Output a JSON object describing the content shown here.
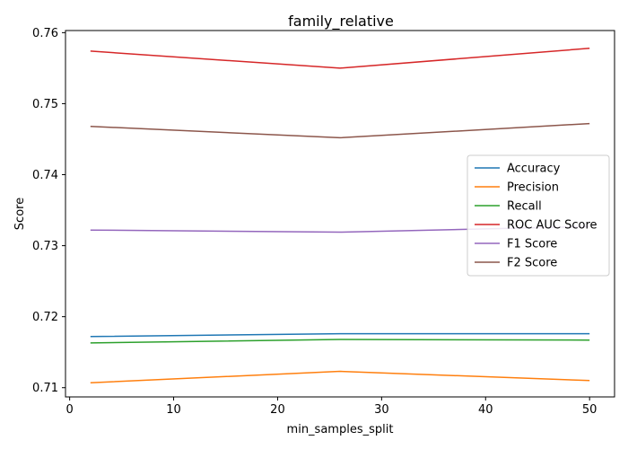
{
  "chart_data": {
    "type": "line",
    "title": "family_relative",
    "xlabel": "min_samples_split",
    "ylabel": "Score",
    "x": [
      2,
      26,
      50
    ],
    "xlim": [
      -0.4,
      52.4
    ],
    "ylim": [
      0.7087,
      0.7603
    ],
    "xticks": [
      0,
      10,
      20,
      30,
      40,
      50
    ],
    "yticks": [
      0.71,
      0.72,
      0.73,
      0.74,
      0.75,
      0.76
    ],
    "ytick_labels": [
      "0.71",
      "0.72",
      "0.73",
      "0.74",
      "0.75",
      "0.76"
    ],
    "grid": false,
    "legend_placement": "center-right",
    "series": [
      {
        "name": "Accuracy",
        "color": "#1f77b4",
        "values": [
          0.7172,
          0.7176,
          0.7176
        ]
      },
      {
        "name": "Precision",
        "color": "#ff7f0e",
        "values": [
          0.7107,
          0.7123,
          0.711
        ]
      },
      {
        "name": "Recall",
        "color": "#2ca02c",
        "values": [
          0.7163,
          0.7168,
          0.7167
        ]
      },
      {
        "name": "ROC AUC Score",
        "color": "#d62728",
        "values": [
          0.7574,
          0.755,
          0.7578
        ]
      },
      {
        "name": "F1 Score",
        "color": "#9467bd",
        "values": [
          0.7322,
          0.7319,
          0.7327
        ]
      },
      {
        "name": "F2 Score",
        "color": "#8c564b",
        "values": [
          0.7468,
          0.7452,
          0.7472
        ]
      }
    ]
  }
}
